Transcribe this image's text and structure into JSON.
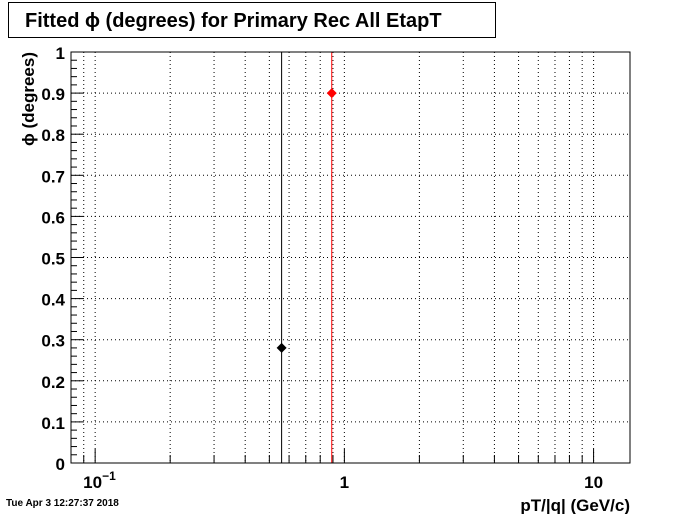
{
  "title": "Fitted ϕ (degrees) for Primary Rec All EtapT",
  "timestamp": "Tue Apr  3 12:27:37 2018",
  "chart_data": {
    "type": "scatter",
    "title": "Fitted ϕ (degrees) for Primary Rec All EtapT",
    "xlabel": "pT/|q| (GeV/c)",
    "ylabel": "ϕ (degrees)",
    "xscale": "log",
    "xlim": [
      0.08,
      14
    ],
    "ylim": [
      0,
      1
    ],
    "grid": true,
    "y_ticks": [
      {
        "value": 0,
        "label": "0"
      },
      {
        "value": 0.1,
        "label": "0.1"
      },
      {
        "value": 0.2,
        "label": "0.2"
      },
      {
        "value": 0.3,
        "label": "0.3"
      },
      {
        "value": 0.4,
        "label": "0.4"
      },
      {
        "value": 0.5,
        "label": "0.5"
      },
      {
        "value": 0.6,
        "label": "0.6"
      },
      {
        "value": 0.7,
        "label": "0.7"
      },
      {
        "value": 0.8,
        "label": "0.8"
      },
      {
        "value": 0.9,
        "label": "0.9"
      },
      {
        "value": 1,
        "label": "1"
      }
    ],
    "x_major_ticks": [
      {
        "value": 0.1,
        "base": "10",
        "exp": "−1"
      },
      {
        "value": 1,
        "base": "1",
        "exp": ""
      },
      {
        "value": 10,
        "base": "10",
        "exp": ""
      }
    ],
    "x_minor_ticks": [
      0.08,
      0.09,
      0.2,
      0.3,
      0.4,
      0.5,
      0.6,
      0.7,
      0.8,
      0.9,
      2,
      3,
      4,
      5,
      6,
      7,
      8,
      9
    ],
    "series": [
      {
        "color": "#000000",
        "points": [
          {
            "x": 0.56,
            "y": 0.28
          }
        ]
      },
      {
        "color": "#ff0000",
        "points": [
          {
            "x": 0.89,
            "y": 0.9
          }
        ]
      }
    ]
  }
}
